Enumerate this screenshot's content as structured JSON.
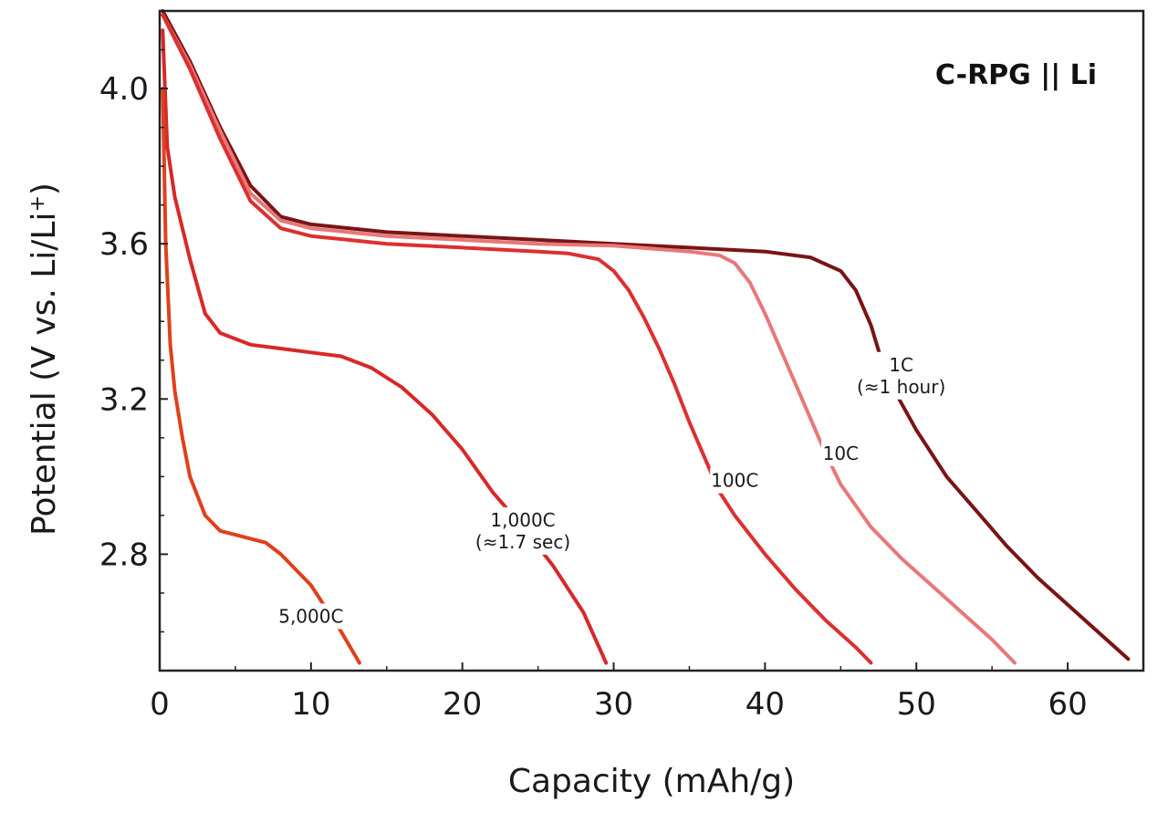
{
  "chart_data": {
    "type": "line",
    "title": "C-RPG || Li",
    "xlabel": "Capacity (mAh/g)",
    "ylabel_main": "Potential (V vs. Li/Li",
    "ylabel_sup": "+",
    "ylabel_close": ")",
    "xlim": [
      0,
      65
    ],
    "ylim": [
      2.5,
      4.2
    ],
    "xticks": [
      0,
      10,
      20,
      30,
      40,
      50,
      60
    ],
    "yticks": [
      2.8,
      3.2,
      3.6,
      4.0
    ],
    "xtick_labels": [
      "0",
      "10",
      "20",
      "30",
      "40",
      "50",
      "60"
    ],
    "ytick_labels": [
      "2.8",
      "3.2",
      "3.6",
      "4.0"
    ],
    "legend": "none",
    "grid": false,
    "series": [
      {
        "name": "1C",
        "color": "#7a1414",
        "points": [
          [
            0.2,
            4.2
          ],
          [
            2,
            4.07
          ],
          [
            4,
            3.9
          ],
          [
            6,
            3.75
          ],
          [
            8,
            3.67
          ],
          [
            10,
            3.65
          ],
          [
            15,
            3.63
          ],
          [
            20,
            3.62
          ],
          [
            25,
            3.61
          ],
          [
            30,
            3.6
          ],
          [
            35,
            3.59
          ],
          [
            40,
            3.58
          ],
          [
            43,
            3.565
          ],
          [
            45,
            3.53
          ],
          [
            46,
            3.48
          ],
          [
            47,
            3.39
          ],
          [
            48,
            3.26
          ],
          [
            50,
            3.12
          ],
          [
            52,
            3.0
          ],
          [
            54,
            2.91
          ],
          [
            56,
            2.82
          ],
          [
            58,
            2.74
          ],
          [
            60,
            2.67
          ],
          [
            62,
            2.6
          ],
          [
            64,
            2.53
          ]
        ]
      },
      {
        "name": "10C",
        "color": "#e87878",
        "points": [
          [
            0.2,
            4.19
          ],
          [
            2,
            4.06
          ],
          [
            4,
            3.89
          ],
          [
            6,
            3.73
          ],
          [
            8,
            3.66
          ],
          [
            10,
            3.64
          ],
          [
            15,
            3.62
          ],
          [
            20,
            3.61
          ],
          [
            25,
            3.6
          ],
          [
            30,
            3.595
          ],
          [
            35,
            3.58
          ],
          [
            37,
            3.57
          ],
          [
            38,
            3.55
          ],
          [
            39,
            3.5
          ],
          [
            40,
            3.42
          ],
          [
            41,
            3.33
          ],
          [
            42,
            3.24
          ],
          [
            43,
            3.15
          ],
          [
            44,
            3.06
          ],
          [
            45,
            2.98
          ],
          [
            47,
            2.87
          ],
          [
            49,
            2.79
          ],
          [
            51,
            2.72
          ],
          [
            53,
            2.65
          ],
          [
            55,
            2.58
          ],
          [
            56.5,
            2.52
          ]
        ]
      },
      {
        "name": "100C",
        "color": "#dc3030",
        "points": [
          [
            0.2,
            4.19
          ],
          [
            2,
            4.05
          ],
          [
            4,
            3.87
          ],
          [
            6,
            3.71
          ],
          [
            8,
            3.64
          ],
          [
            10,
            3.62
          ],
          [
            15,
            3.6
          ],
          [
            20,
            3.59
          ],
          [
            25,
            3.58
          ],
          [
            27,
            3.575
          ],
          [
            29,
            3.56
          ],
          [
            30,
            3.53
          ],
          [
            31,
            3.48
          ],
          [
            32,
            3.41
          ],
          [
            33,
            3.33
          ],
          [
            34,
            3.24
          ],
          [
            35,
            3.14
          ],
          [
            36,
            3.05
          ],
          [
            37,
            2.96
          ],
          [
            38,
            2.9
          ],
          [
            40,
            2.8
          ],
          [
            42,
            2.71
          ],
          [
            44,
            2.63
          ],
          [
            46,
            2.56
          ],
          [
            47,
            2.52
          ]
        ]
      },
      {
        "name": "1,000C",
        "color": "#d82828",
        "points": [
          [
            0.2,
            4.15
          ],
          [
            0.5,
            3.85
          ],
          [
            1,
            3.72
          ],
          [
            2,
            3.56
          ],
          [
            3,
            3.42
          ],
          [
            4,
            3.37
          ],
          [
            6,
            3.34
          ],
          [
            8,
            3.33
          ],
          [
            10,
            3.32
          ],
          [
            12,
            3.31
          ],
          [
            14,
            3.28
          ],
          [
            16,
            3.23
          ],
          [
            18,
            3.16
          ],
          [
            20,
            3.07
          ],
          [
            22,
            2.96
          ],
          [
            24,
            2.87
          ],
          [
            26,
            2.77
          ],
          [
            28,
            2.65
          ],
          [
            29.5,
            2.52
          ]
        ]
      },
      {
        "name": "5,000C",
        "color": "#e0401a",
        "points": [
          [
            0.2,
            4.0
          ],
          [
            0.4,
            3.6
          ],
          [
            0.7,
            3.34
          ],
          [
            1,
            3.22
          ],
          [
            1.5,
            3.1
          ],
          [
            2,
            3.0
          ],
          [
            3,
            2.9
          ],
          [
            4,
            2.86
          ],
          [
            5,
            2.85
          ],
          [
            6,
            2.84
          ],
          [
            7,
            2.83
          ],
          [
            8,
            2.8
          ],
          [
            9,
            2.76
          ],
          [
            10,
            2.72
          ],
          [
            11,
            2.66
          ],
          [
            12,
            2.6
          ],
          [
            13.2,
            2.52
          ]
        ]
      }
    ],
    "annotations": [
      {
        "lines": [
          "1C",
          "(≈1 hour)"
        ],
        "x": 49,
        "y": 3.26
      },
      {
        "lines": [
          "10C"
        ],
        "x": 45,
        "y": 3.06
      },
      {
        "lines": [
          "100C"
        ],
        "x": 38,
        "y": 2.99
      },
      {
        "lines": [
          "1,000C",
          "(≈1.7 sec)"
        ],
        "x": 24,
        "y": 2.86
      },
      {
        "lines": [
          "5,000C"
        ],
        "x": 10,
        "y": 2.64
      }
    ]
  }
}
